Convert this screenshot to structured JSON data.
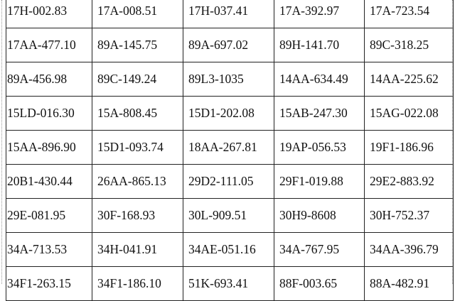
{
  "table": {
    "rows": [
      [
        "17H-002.83",
        "17A-008.51",
        "17H-037.41",
        "17A-392.97",
        "17A-723.54"
      ],
      [
        "17AA-477.10",
        "89A-145.75",
        "89A-697.02",
        "89H-141.70",
        "89C-318.25"
      ],
      [
        "89A-456.98",
        "89C-149.24",
        "89L3-1035",
        "14AA-634.49",
        "14AA-225.62"
      ],
      [
        "15LD-016.30",
        "15A-808.45",
        "15D1-202.08",
        "15AB-247.30",
        "15AG-022.08"
      ],
      [
        "15AA-896.90",
        "15D1-093.74",
        "18AA-267.81",
        "19AP-056.53",
        "19F1-186.96"
      ],
      [
        "20B1-430.44",
        "26AA-865.13",
        "29D2-111.05",
        "29F1-019.88",
        "29E2-883.92"
      ],
      [
        "29E-081.95",
        "30F-168.93",
        "30L-909.51",
        "30H9-8608",
        "30H-752.37"
      ],
      [
        "34A-713.53",
        "34H-041.91",
        "34AE-051.16",
        "34A-767.95",
        "34AA-396.79"
      ],
      [
        "34F1-263.15",
        "34F1-186.10",
        "51K-693.41",
        "88F-003.65",
        "88A-482.91"
      ]
    ]
  }
}
